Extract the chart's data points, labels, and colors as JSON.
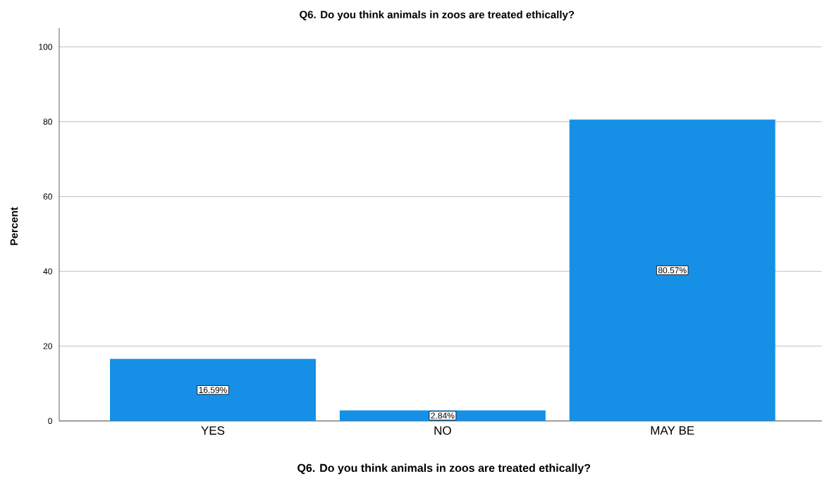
{
  "chart_data": {
    "type": "bar",
    "title": "Q6. Do you think animals in zoos are treated ethically?",
    "xlabel": "Q6. Do you think animals in zoos are treated ethically?",
    "ylabel": "Percent",
    "categories": [
      "YES",
      "NO",
      "MAY BE"
    ],
    "values": [
      16.59,
      2.84,
      80.57
    ],
    "value_labels": [
      "16.59%",
      "2.84%",
      "80.57%"
    ],
    "color": "#1590e6",
    "ylim": [
      0,
      105
    ],
    "yticks": [
      0,
      20,
      40,
      60,
      80,
      100
    ],
    "grid": "y"
  }
}
